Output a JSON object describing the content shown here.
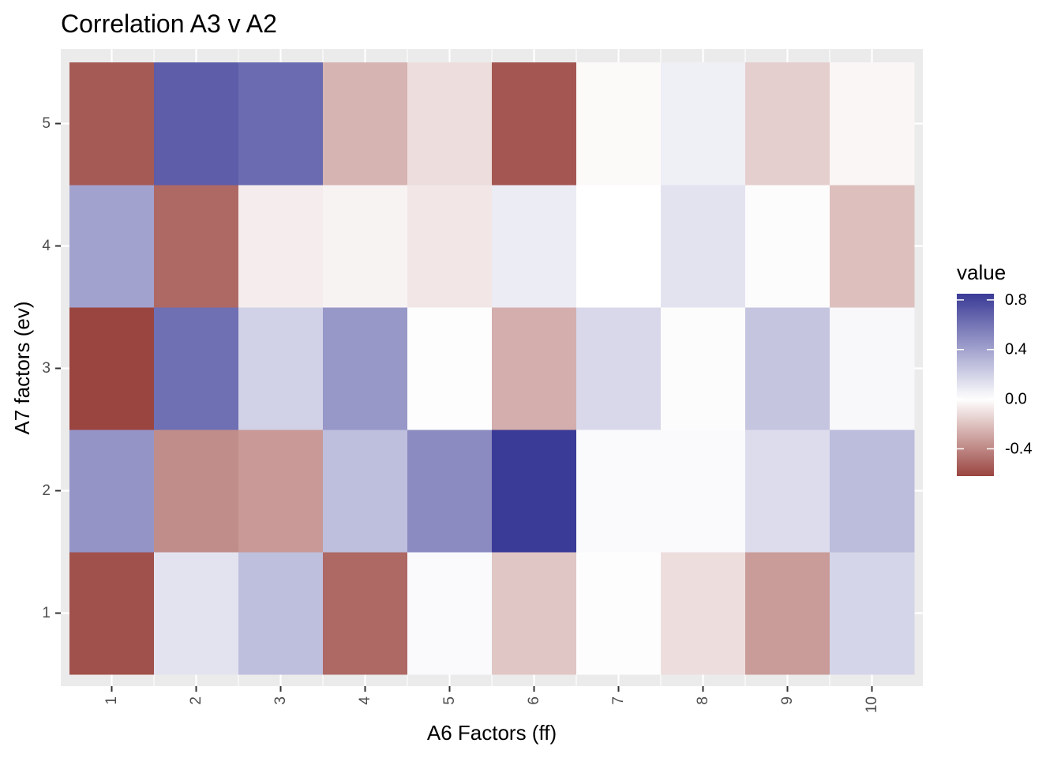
{
  "colors": {
    "high": "#3a3a97",
    "mid": "#ffffff",
    "low": "#9a4540",
    "panel_bg": "#ebebeb",
    "grid": "#ffffff",
    "tick_text": "#4d4d4d",
    "tick_mark": "#333333"
  },
  "chart_data": {
    "type": "heatmap",
    "title": "Correlation A3 v A2",
    "xlabel": "A6 Factors (ff)",
    "ylabel": "A7 factors (ev)",
    "x_categories": [
      "1",
      "2",
      "3",
      "4",
      "5",
      "6",
      "7",
      "8",
      "9",
      "10"
    ],
    "y_categories": [
      "1",
      "2",
      "3",
      "4",
      "5"
    ],
    "x_tick_rotation": "vertical",
    "grid": true,
    "legend": {
      "title": "value",
      "placement": "right",
      "breaks": [
        0.8,
        0.4,
        0.0,
        -0.4
      ],
      "break_labels": [
        "0.8",
        "0.4",
        "0.0",
        "-0.4"
      ],
      "range": [
        -0.62,
        0.85
      ]
    },
    "values": [
      [
        -0.58,
        0.12,
        0.28,
        -0.5,
        0.02,
        -0.19,
        0.01,
        -0.11,
        -0.33,
        0.18
      ],
      [
        0.46,
        -0.38,
        -0.34,
        0.28,
        0.5,
        0.85,
        0.02,
        0.02,
        0.15,
        0.29
      ],
      [
        -0.62,
        0.62,
        0.2,
        0.45,
        0.01,
        -0.27,
        0.17,
        -0.01,
        0.25,
        0.03
      ],
      [
        0.4,
        -0.5,
        -0.06,
        -0.04,
        -0.08,
        0.08,
        0.0,
        0.12,
        -0.01,
        -0.21
      ],
      [
        -0.55,
        0.7,
        0.64,
        -0.25,
        -0.11,
        -0.56,
        -0.02,
        0.07,
        -0.16,
        -0.03
      ]
    ]
  }
}
